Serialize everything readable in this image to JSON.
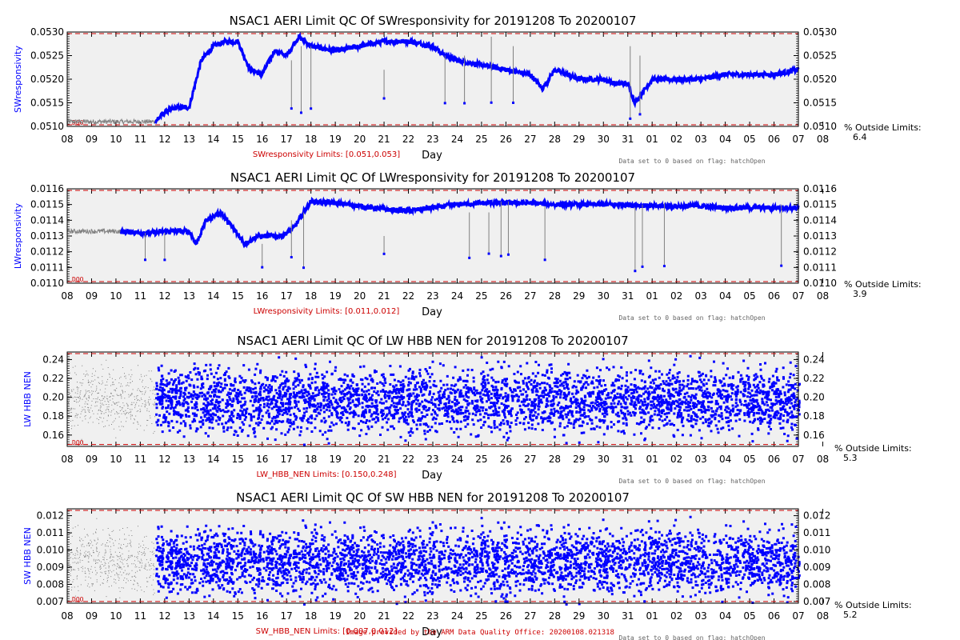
{
  "x_tick_labels": [
    "08",
    "09",
    "10",
    "11",
    "12",
    "13",
    "14",
    "15",
    "16",
    "17",
    "18",
    "19",
    "20",
    "21",
    "22",
    "23",
    "24",
    "25",
    "26",
    "27",
    "28",
    "29",
    "30",
    "31",
    "01",
    "02",
    "03",
    "04",
    "05",
    "06",
    "07",
    "08"
  ],
  "xlabel": "Day",
  "outside_label": "% Outside Limits:",
  "flag_note": "Data set to 0 based on flag: hatchOpen",
  "dqo_tag": "DQO",
  "footer": "Image provided by the ARM Data Quality Office: 20200108.021318",
  "colors": {
    "good": "#0000ff",
    "flagged": "#808080",
    "limit": "#cc0000",
    "plot_bg": "#f0f0f0"
  },
  "chart_data": [
    {
      "type": "line",
      "title": "NSAC1 AERI Limit QC Of SWresponsivity for 20191208 To 20200107",
      "ylabel": "SWresponsivity",
      "ylim": [
        0.051,
        0.053
      ],
      "yticks": [
        "0.0510",
        "0.0515",
        "0.0520",
        "0.0525",
        "0.0530"
      ],
      "limits_text": "SWresponsivity Limits: [0.051,0.053]",
      "limits": [
        0.051,
        0.053
      ],
      "outside_pct": "6.4",
      "x": [
        8,
        9,
        10,
        11,
        11.6,
        12,
        12.5,
        13,
        13.2,
        13.5,
        14,
        14.5,
        15,
        15.5,
        16,
        16.5,
        17,
        17.5,
        18,
        19,
        20,
        21,
        22,
        23,
        23.5,
        24,
        25,
        26,
        27,
        27.5,
        28,
        29,
        30,
        30.5,
        31,
        31.3,
        32,
        33,
        34,
        35,
        36,
        37,
        38
      ],
      "values": [
        0.0511,
        0.0511,
        0.0511,
        0.0511,
        0.0511,
        0.0513,
        0.0514,
        0.0514,
        0.0518,
        0.0524,
        0.0527,
        0.0528,
        0.0528,
        0.0522,
        0.0521,
        0.0526,
        0.0525,
        0.0529,
        0.0527,
        0.0526,
        0.0527,
        0.0528,
        0.0528,
        0.0527,
        0.0525,
        0.0524,
        0.0523,
        0.0522,
        0.0521,
        0.0518,
        0.0522,
        0.052,
        0.052,
        0.0519,
        0.0519,
        0.0515,
        0.052,
        0.052,
        0.052,
        0.0521,
        0.0521,
        0.0521,
        0.0522
      ],
      "flagged_until": 11.6
    },
    {
      "type": "line",
      "title": "NSAC1 AERI Limit QC Of LWresponsivity for 20191208 To 20200107",
      "ylabel": "LWresponsivity",
      "ylim": [
        0.011,
        0.0116
      ],
      "yticks": [
        "0.0110",
        "0.0111",
        "0.0112",
        "0.0113",
        "0.0114",
        "0.0115",
        "0.0116"
      ],
      "limits_text": "LWresponsivity Limits: [0.011,0.012]",
      "limits": [
        0.011,
        0.012
      ],
      "outside_pct": "3.9",
      "x": [
        8,
        9,
        10,
        11,
        11.6,
        12,
        12.5,
        13,
        13.3,
        13.7,
        14.3,
        14.8,
        15.3,
        15.8,
        16.3,
        16.8,
        17.3,
        17.7,
        18,
        19,
        20,
        21,
        22,
        23,
        24,
        25,
        26,
        27,
        28,
        29,
        30,
        31,
        32,
        33,
        34,
        35,
        36,
        37,
        38
      ],
      "values": [
        0.01133,
        0.01133,
        0.01133,
        0.01132,
        0.01132,
        0.01133,
        0.01133,
        0.01133,
        0.01125,
        0.0114,
        0.01145,
        0.01135,
        0.01125,
        0.0113,
        0.0113,
        0.0113,
        0.01135,
        0.01145,
        0.01152,
        0.01151,
        0.01149,
        0.01147,
        0.01146,
        0.01148,
        0.0115,
        0.01151,
        0.01151,
        0.01151,
        0.0115,
        0.0115,
        0.0115,
        0.0115,
        0.01149,
        0.01149,
        0.01149,
        0.01148,
        0.01148,
        0.01148,
        0.01148
      ],
      "flagged_until": 10.2
    },
    {
      "type": "scatter",
      "title": "NSAC1 AERI Limit QC Of LW HBB NEN for 20191208 To 20200107",
      "ylabel": "LW HBB NEN",
      "ylim": [
        0.148,
        0.248
      ],
      "yticks": [
        "0.16",
        "0.18",
        "0.20",
        "0.22",
        "0.24"
      ],
      "limits_text": "LW_HBB_NEN Limits: [0.150,0.248]",
      "limits": [
        0.15,
        0.248
      ],
      "outside_pct": "5.3",
      "center": 0.198,
      "spread": 0.045,
      "flagged_until": 11.6
    },
    {
      "type": "scatter",
      "title": "NSAC1 AERI Limit QC Of SW HBB NEN for 20191208 To 20200107",
      "ylabel": "SW HBB NEN",
      "ylim": [
        0.0069,
        0.0124
      ],
      "yticks": [
        "0.007",
        "0.008",
        "0.009",
        "0.010",
        "0.011",
        "0.012"
      ],
      "limits_text": "SW_HBB_NEN Limits: [0.007,0.012]",
      "limits": [
        0.007,
        0.0124
      ],
      "outside_pct": "5.2",
      "center": 0.0094,
      "spread": 0.0025,
      "flagged_until": 11.6
    }
  ]
}
